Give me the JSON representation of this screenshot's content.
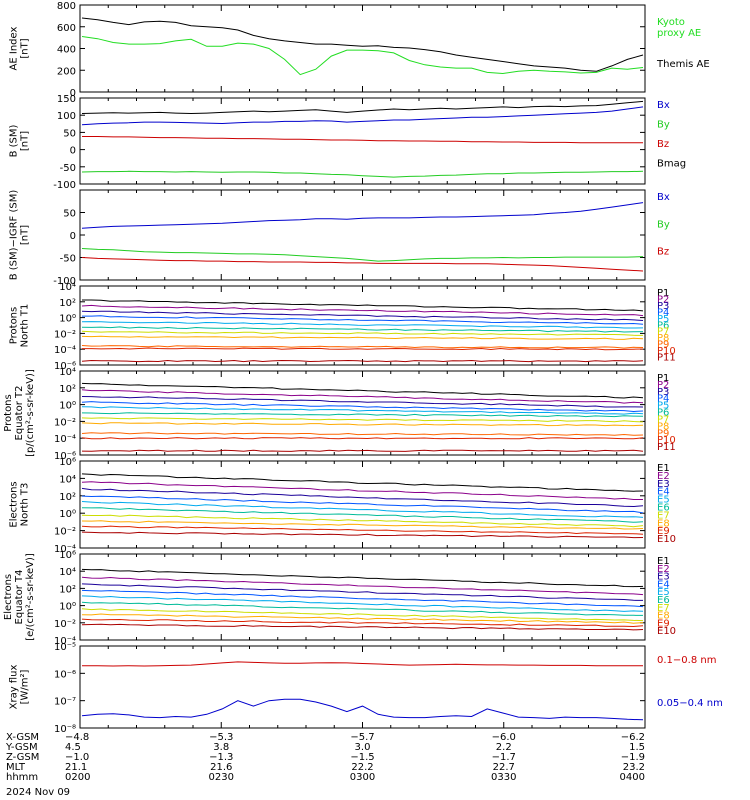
{
  "chart_data": [
    {
      "type": "line",
      "ylabel_lines": [
        "AE Index",
        "[nT]"
      ],
      "yscale": "linear",
      "ylim": [
        0,
        800
      ],
      "y_ticks": [
        "0",
        "200",
        "400",
        "600",
        "800"
      ],
      "x_range": [
        "02:00",
        "04:00"
      ],
      "series": [
        {
          "name": "Kyoto proxy AE",
          "label_lines": [
            "Kyoto",
            "proxy AE"
          ],
          "color": "#22dd22",
          "values": [
            510,
            490,
            455,
            440,
            440,
            445,
            470,
            485,
            420,
            420,
            450,
            440,
            400,
            300,
            160,
            210,
            330,
            385,
            385,
            380,
            360,
            290,
            250,
            230,
            220,
            220,
            180,
            170,
            190,
            200,
            190,
            185,
            175,
            180,
            220,
            210,
            225
          ]
        },
        {
          "name": "Themis AE",
          "label_lines": [
            "Themis AE"
          ],
          "color": "#000000",
          "values": [
            680,
            665,
            640,
            620,
            645,
            650,
            640,
            610,
            600,
            590,
            570,
            520,
            490,
            470,
            455,
            440,
            440,
            430,
            420,
            425,
            410,
            405,
            390,
            370,
            340,
            320,
            300,
            280,
            260,
            240,
            230,
            220,
            200,
            190,
            240,
            300,
            340
          ]
        }
      ]
    },
    {
      "type": "line",
      "ylabel_lines": [
        "B (SM)",
        "[nT]"
      ],
      "yscale": "linear",
      "ylim": [
        -100,
        150
      ],
      "y_ticks": [
        "-100",
        "-50",
        "0",
        "50",
        "100",
        "150"
      ],
      "x_range": [
        "02:00",
        "04:00"
      ],
      "series": [
        {
          "name": "Bx",
          "color": "#0000cc",
          "values": [
            72,
            75,
            77,
            78,
            80,
            80,
            79,
            78,
            77,
            76,
            78,
            80,
            80,
            82,
            82,
            84,
            83,
            80,
            82,
            84,
            86,
            86,
            88,
            90,
            92,
            94,
            94,
            96,
            98,
            100,
            102,
            104,
            106,
            108,
            112,
            118,
            124
          ]
        },
        {
          "name": "By",
          "color": "#22cc22",
          "values": [
            -65,
            -64,
            -64,
            -63,
            -64,
            -64,
            -65,
            -64,
            -65,
            -66,
            -65,
            -65,
            -66,
            -68,
            -68,
            -70,
            -72,
            -73,
            -76,
            -78,
            -80,
            -78,
            -77,
            -75,
            -74,
            -72,
            -70,
            -70,
            -68,
            -68,
            -67,
            -66,
            -66,
            -65,
            -64,
            -64,
            -63
          ]
        },
        {
          "name": "Bz",
          "color": "#cc0000",
          "values": [
            38,
            38,
            37,
            37,
            36,
            35,
            35,
            34,
            33,
            33,
            32,
            32,
            31,
            30,
            30,
            29,
            28,
            28,
            27,
            26,
            26,
            25,
            25,
            24,
            24,
            23,
            23,
            22,
            22,
            21,
            21,
            21,
            20,
            20,
            20,
            20,
            20
          ]
        },
        {
          "name": "Bmag",
          "color": "#000000",
          "values": [
            105,
            106,
            107,
            106,
            107,
            108,
            106,
            105,
            106,
            108,
            110,
            112,
            110,
            112,
            114,
            116,
            112,
            108,
            112,
            115,
            118,
            116,
            118,
            120,
            118,
            120,
            122,
            124,
            122,
            125,
            126,
            125,
            127,
            128,
            132,
            136,
            140
          ]
        }
      ]
    },
    {
      "type": "line",
      "ylabel_lines": [
        "B (SM)−IGRF (SM)",
        "[nT]"
      ],
      "yscale": "linear",
      "ylim": [
        -100,
        100
      ],
      "y_ticks": [
        "-100",
        "-50",
        "0",
        "50"
      ],
      "x_range": [
        "02:00",
        "04:00"
      ],
      "series": [
        {
          "name": "Bx",
          "color": "#0000cc",
          "values": [
            15,
            17,
            19,
            20,
            21,
            22,
            23,
            24,
            25,
            26,
            28,
            30,
            32,
            33,
            34,
            36,
            36,
            35,
            37,
            38,
            38,
            38,
            39,
            40,
            40,
            41,
            42,
            43,
            44,
            45,
            48,
            50,
            53,
            57,
            62,
            67,
            72
          ]
        },
        {
          "name": "By",
          "color": "#22cc22",
          "values": [
            -30,
            -32,
            -33,
            -35,
            -37,
            -38,
            -39,
            -39,
            -40,
            -41,
            -42,
            -42,
            -43,
            -44,
            -46,
            -48,
            -50,
            -52,
            -55,
            -58,
            -57,
            -55,
            -53,
            -52,
            -52,
            -51,
            -51,
            -50,
            -51,
            -50,
            -50,
            -49,
            -49,
            -49,
            -49,
            -49,
            -48
          ]
        },
        {
          "name": "Bz",
          "color": "#cc0000",
          "values": [
            -50,
            -52,
            -53,
            -54,
            -55,
            -56,
            -57,
            -57,
            -58,
            -58,
            -59,
            -59,
            -60,
            -60,
            -60,
            -61,
            -61,
            -62,
            -62,
            -63,
            -63,
            -63,
            -63,
            -63,
            -64,
            -64,
            -64,
            -65,
            -66,
            -67,
            -68,
            -70,
            -72,
            -74,
            -76,
            -78,
            -80
          ]
        }
      ]
    },
    {
      "type": "line",
      "ylabel_lines": [
        "Protons",
        "North T1"
      ],
      "yscale": "log",
      "ylim_exp": [
        -6,
        4
      ],
      "y_ticks": [
        "10⁻⁶",
        "10⁻⁴",
        "10⁻²",
        "10⁰",
        "10²",
        "10⁴"
      ],
      "x_range": [
        "02:00",
        "04:00"
      ],
      "series": [
        {
          "name": "P1",
          "color": "#000000",
          "log_start": 2.2,
          "log_end": 0.9
        },
        {
          "name": "P2",
          "color": "#8b008b",
          "log_start": 1.5,
          "log_end": 0.3
        },
        {
          "name": "P3",
          "color": "#1a0099",
          "log_start": 0.8,
          "log_end": -0.3
        },
        {
          "name": "P4",
          "color": "#0055ff",
          "log_start": 0.2,
          "log_end": -0.8
        },
        {
          "name": "P5",
          "color": "#00aaee",
          "log_start": -0.5,
          "log_end": -1.3
        },
        {
          "name": "P6",
          "color": "#00bb99",
          "log_start": -1.2,
          "log_end": -1.8
        },
        {
          "name": "P7",
          "color": "#ccdd00",
          "log_start": -1.8,
          "log_end": -2.2
        },
        {
          "name": "P8",
          "color": "#ffaa00",
          "log_start": -2.4,
          "log_end": -2.7
        },
        {
          "name": "P9",
          "color": "#ff6600",
          "log_start": -3.6,
          "log_end": -3.8
        },
        {
          "name": "P10",
          "color": "#dd2200",
          "log_start": -3.9,
          "log_end": -4.0
        },
        {
          "name": "P11",
          "color": "#aa0000",
          "log_start": -5.5,
          "log_end": -5.5
        }
      ]
    },
    {
      "type": "line",
      "ylabel_lines": [
        "Protons",
        "Equator T2",
        "[p/(cm²-s-sr-keV)]"
      ],
      "yscale": "log",
      "ylim_exp": [
        -6,
        4
      ],
      "y_ticks": [
        "10⁻⁶",
        "10⁻⁴",
        "10⁻²",
        "10⁰",
        "10²",
        "10⁴"
      ],
      "x_range": [
        "02:00",
        "04:00"
      ],
      "series": [
        {
          "name": "P1",
          "color": "#000000",
          "log_start": 2.5,
          "log_end": 0.8
        },
        {
          "name": "P2",
          "color": "#8b008b",
          "log_start": 1.7,
          "log_end": 0.2
        },
        {
          "name": "P3",
          "color": "#1a0099",
          "log_start": 1.0,
          "log_end": -0.3
        },
        {
          "name": "P4",
          "color": "#0055ff",
          "log_start": 0.3,
          "log_end": -0.8
        },
        {
          "name": "P5",
          "color": "#00aaee",
          "log_start": -0.3,
          "log_end": -1.1
        },
        {
          "name": "P6",
          "color": "#00bb99",
          "log_start": -1.0,
          "log_end": -1.4
        },
        {
          "name": "P7",
          "color": "#ccdd00",
          "log_start": -1.6,
          "log_end": -2.0
        },
        {
          "name": "P8",
          "color": "#ffaa00",
          "log_start": -2.2,
          "log_end": -2.5
        },
        {
          "name": "P9",
          "color": "#ff6600",
          "log_start": -3.4,
          "log_end": -3.6
        },
        {
          "name": "P10",
          "color": "#dd2200",
          "log_start": -4.0,
          "log_end": -4.0
        },
        {
          "name": "P11",
          "color": "#aa0000",
          "log_start": -5.5,
          "log_end": -5.5
        }
      ]
    },
    {
      "type": "line",
      "ylabel_lines": [
        "Electrons",
        "North T3"
      ],
      "yscale": "log",
      "ylim_exp": [
        -4,
        6
      ],
      "y_ticks": [
        "10⁻⁴",
        "10⁻²",
        "10⁰",
        "10²",
        "10⁴",
        "10⁶"
      ],
      "x_range": [
        "02:00",
        "04:00"
      ],
      "series": [
        {
          "name": "E1",
          "color": "#000000",
          "log_start": 4.5,
          "log_end": 2.5
        },
        {
          "name": "E2",
          "color": "#8b008b",
          "log_start": 3.6,
          "log_end": 1.6
        },
        {
          "name": "E3",
          "color": "#1a0099",
          "log_start": 2.8,
          "log_end": 0.8
        },
        {
          "name": "E4",
          "color": "#0055ff",
          "log_start": 2.0,
          "log_end": 0.1
        },
        {
          "name": "E5",
          "color": "#00aaee",
          "log_start": 1.3,
          "log_end": -0.5
        },
        {
          "name": "E6",
          "color": "#00bb99",
          "log_start": 0.6,
          "log_end": -1.0
        },
        {
          "name": "E7",
          "color": "#ccdd00",
          "log_start": -0.2,
          "log_end": -1.5
        },
        {
          "name": "E8",
          "color": "#ffaa00",
          "log_start": -0.9,
          "log_end": -1.8
        },
        {
          "name": "E9",
          "color": "#dd2200",
          "log_start": -1.5,
          "log_end": -2.4
        },
        {
          "name": "E10",
          "color": "#aa0000",
          "log_start": -2.2,
          "log_end": -2.8
        }
      ]
    },
    {
      "type": "line",
      "ylabel_lines": [
        "Electrons",
        "Equator T4",
        "[e/(cm²-s-sr-keV)]"
      ],
      "yscale": "log",
      "ylim_exp": [
        -4,
        6
      ],
      "y_ticks": [
        "10⁻⁴",
        "10⁻²",
        "10⁰",
        "10²",
        "10⁴",
        "10⁶"
      ],
      "x_range": [
        "02:00",
        "04:00"
      ],
      "series": [
        {
          "name": "E1",
          "color": "#000000",
          "log_start": 4.2,
          "log_end": 2.2
        },
        {
          "name": "E2",
          "color": "#8b008b",
          "log_start": 3.3,
          "log_end": 1.3
        },
        {
          "name": "E3",
          "color": "#1a0099",
          "log_start": 2.5,
          "log_end": 0.6
        },
        {
          "name": "E4",
          "color": "#0055ff",
          "log_start": 1.8,
          "log_end": -0.1
        },
        {
          "name": "E5",
          "color": "#00aaee",
          "log_start": 1.1,
          "log_end": -0.7
        },
        {
          "name": "E6",
          "color": "#00bb99",
          "log_start": 0.4,
          "log_end": -1.2
        },
        {
          "name": "E7",
          "color": "#ccdd00",
          "log_start": -0.4,
          "log_end": -1.7
        },
        {
          "name": "E8",
          "color": "#ffaa00",
          "log_start": -1.0,
          "log_end": -2.0
        },
        {
          "name": "E9",
          "color": "#dd2200",
          "log_start": -1.6,
          "log_end": -2.4
        },
        {
          "name": "E10",
          "color": "#aa0000",
          "log_start": -2.2,
          "log_end": -2.8
        }
      ]
    },
    {
      "type": "line",
      "ylabel_lines": [
        "Xray flux",
        "[W/m²]"
      ],
      "yscale": "log",
      "ylim_exp": [
        -8,
        -5
      ],
      "y_ticks": [
        "10⁻⁸",
        "10⁻⁷",
        "10⁻⁶",
        "10⁻⁵"
      ],
      "x_range": [
        "02:00",
        "04:00"
      ],
      "series": [
        {
          "name": "0.1−0.8 nm",
          "color": "#cc0000",
          "log_values": [
            -5.72,
            -5.72,
            -5.73,
            -5.72,
            -5.73,
            -5.72,
            -5.71,
            -5.7,
            -5.66,
            -5.62,
            -5.58,
            -5.6,
            -5.62,
            -5.63,
            -5.63,
            -5.62,
            -5.61,
            -5.62,
            -5.64,
            -5.66,
            -5.68,
            -5.7,
            -5.69,
            -5.68,
            -5.67,
            -5.68,
            -5.69,
            -5.69,
            -5.7,
            -5.7,
            -5.71,
            -5.71,
            -5.71,
            -5.72,
            -5.72,
            -5.72,
            -5.72
          ]
        },
        {
          "name": "0.05−0.4 nm",
          "color": "#0000cc",
          "log_values": [
            -7.55,
            -7.5,
            -7.48,
            -7.52,
            -7.6,
            -7.62,
            -7.58,
            -7.6,
            -7.5,
            -7.3,
            -7.0,
            -7.2,
            -7.0,
            -6.95,
            -6.95,
            -7.05,
            -7.2,
            -7.4,
            -7.2,
            -7.5,
            -7.6,
            -7.62,
            -7.62,
            -7.58,
            -7.55,
            -7.58,
            -7.3,
            -7.45,
            -7.6,
            -7.62,
            -7.65,
            -7.6,
            -7.62,
            -7.62,
            -7.65,
            -7.68,
            -7.7
          ]
        }
      ]
    }
  ],
  "x_axis": {
    "tick_count": 5,
    "row_labels": [
      "X-GSM",
      "Y-GSM",
      "Z-GSM",
      "MLT",
      "hhmm"
    ],
    "rows": [
      [
        "−4.8",
        "−5.3",
        "−5.7",
        "−6.0",
        "−6.2"
      ],
      [
        "4.5",
        "3.8",
        "3.0",
        "2.2",
        "1.5"
      ],
      [
        "−1.0",
        "−1.3",
        "−1.5",
        "−1.7",
        "−1.9"
      ],
      [
        "21.1",
        "21.6",
        "22.2",
        "22.7",
        "23.2"
      ],
      [
        "0200",
        "0230",
        "0300",
        "0330",
        "0400"
      ]
    ],
    "date": "2024 Nov 09"
  }
}
